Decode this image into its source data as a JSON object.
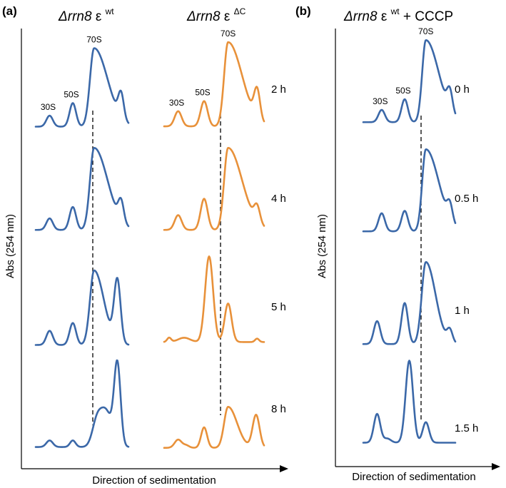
{
  "colors": {
    "wt": "#3b68a8",
    "dc": "#e8913a",
    "axis": "#000000"
  },
  "chart_data": {
    "type": "line",
    "description_units": "relative absorbance (A254) vs relative sedimentation position (0-1, top to bottom of gradient)",
    "panels": [
      {
        "panel": "(a)",
        "xlabel": "Direction of sedimentation",
        "ylabel": "Abs (254 nm)",
        "columns": [
          {
            "title_main": "Δrrn8",
            "title_greek": "ε",
            "title_sup": "wt",
            "color": "wt",
            "profiles": [
              {
                "time": "2 h",
                "base": 0.05,
                "peaks": [
                  {
                    "label": "30S",
                    "x": 0.15,
                    "h": 0.14,
                    "w": 0.035
                  },
                  {
                    "label": "50S",
                    "x": 0.4,
                    "h": 0.3,
                    "w": 0.035
                  },
                  {
                    "label": "70S",
                    "x": 0.63,
                    "h": 1.0,
                    "w": 0.045,
                    "tail": 0.1
                  },
                  {
                    "label": "",
                    "x": 0.92,
                    "h": 0.32,
                    "w": 0.03
                  }
                ]
              },
              {
                "time": "4 h",
                "base": 0.05,
                "peaks": [
                  {
                    "label": "",
                    "x": 0.15,
                    "h": 0.14,
                    "w": 0.035
                  },
                  {
                    "label": "",
                    "x": 0.4,
                    "h": 0.28,
                    "w": 0.035
                  },
                  {
                    "label": "",
                    "x": 0.63,
                    "h": 1.0,
                    "w": 0.045,
                    "tail": 0.1
                  },
                  {
                    "label": "",
                    "x": 0.92,
                    "h": 0.25,
                    "w": 0.03
                  }
                ]
              },
              {
                "time": "5 h",
                "base": 0.05,
                "peaks": [
                  {
                    "label": "",
                    "x": 0.15,
                    "h": 0.18,
                    "w": 0.035
                  },
                  {
                    "label": "",
                    "x": 0.4,
                    "h": 0.28,
                    "w": 0.035
                  },
                  {
                    "label": "",
                    "x": 0.63,
                    "h": 0.95,
                    "w": 0.045,
                    "tail": 0.06
                  },
                  {
                    "label": "",
                    "x": 0.88,
                    "h": 0.8,
                    "w": 0.035
                  }
                ]
              },
              {
                "time": "8 h",
                "base": 0.03,
                "peaks": [
                  {
                    "label": "",
                    "x": 0.15,
                    "h": 0.08,
                    "w": 0.035
                  },
                  {
                    "label": "",
                    "x": 0.4,
                    "h": 0.08,
                    "w": 0.03
                  },
                  {
                    "label": "",
                    "x": 0.66,
                    "h": 0.3,
                    "w": 0.05
                  },
                  {
                    "label": "",
                    "x": 0.76,
                    "h": 0.42,
                    "w": 0.06
                  },
                  {
                    "label": "",
                    "x": 0.88,
                    "h": 1.0,
                    "w": 0.035
                  }
                ]
              }
            ]
          },
          {
            "title_main": "Δrrn8",
            "title_greek": "ε",
            "title_sup": "ΔC",
            "color": "dc",
            "profiles": [
              {
                "time": "2 h",
                "base": 0.05,
                "peaks": [
                  {
                    "label": "30S",
                    "x": 0.14,
                    "h": 0.18,
                    "w": 0.035
                  },
                  {
                    "label": "50S",
                    "x": 0.4,
                    "h": 0.3,
                    "w": 0.035
                  },
                  {
                    "label": "70S",
                    "x": 0.64,
                    "h": 1.0,
                    "w": 0.04,
                    "tail": 0.1
                  },
                  {
                    "label": "",
                    "x": 0.93,
                    "h": 0.35,
                    "w": 0.03
                  }
                ]
              },
              {
                "time": "4 h",
                "base": 0.05,
                "peaks": [
                  {
                    "label": "",
                    "x": 0.14,
                    "h": 0.18,
                    "w": 0.035
                  },
                  {
                    "label": "",
                    "x": 0.4,
                    "h": 0.38,
                    "w": 0.035
                  },
                  {
                    "label": "",
                    "x": 0.64,
                    "h": 1.0,
                    "w": 0.04,
                    "tail": 0.1
                  },
                  {
                    "label": "",
                    "x": 0.93,
                    "h": 0.2,
                    "w": 0.03
                  }
                ]
              },
              {
                "time": "5 h",
                "base": 0.08,
                "peaks": [
                  {
                    "label": "",
                    "x": 0.05,
                    "h": 0.05,
                    "w": 0.02
                  },
                  {
                    "label": "",
                    "x": 0.2,
                    "h": 0.05,
                    "w": 0.06
                  },
                  {
                    "label": "",
                    "x": 0.45,
                    "h": 1.0,
                    "w": 0.04
                  },
                  {
                    "label": "",
                    "x": 0.64,
                    "h": 0.45,
                    "w": 0.035
                  },
                  {
                    "label": "",
                    "x": 0.93,
                    "h": 0.04,
                    "w": 0.02
                  }
                ]
              },
              {
                "time": "8 h",
                "base": 0.02,
                "peaks": [
                  {
                    "label": "",
                    "x": 0.14,
                    "h": 0.1,
                    "w": 0.035
                  },
                  {
                    "label": "",
                    "x": 0.22,
                    "h": 0.03,
                    "w": 0.03
                  },
                  {
                    "label": "",
                    "x": 0.4,
                    "h": 0.25,
                    "w": 0.03
                  },
                  {
                    "label": "",
                    "x": 0.64,
                    "h": 0.5,
                    "w": 0.04,
                    "tail": 0.05
                  },
                  {
                    "label": "",
                    "x": 0.92,
                    "h": 0.4,
                    "w": 0.035
                  }
                ]
              }
            ]
          }
        ]
      },
      {
        "panel": "(b)",
        "xlabel": "Direction of sedimentation",
        "ylabel": "Abs (254 nm)",
        "columns": [
          {
            "title_main": "Δrrn8",
            "title_greek": "ε",
            "title_sup": "wt",
            "title_suffix": " + CCCP",
            "color": "wt",
            "profiles": [
              {
                "time": "0 h",
                "base": 0.05,
                "peaks": [
                  {
                    "label": "30S",
                    "x": 0.2,
                    "h": 0.15,
                    "w": 0.035
                  },
                  {
                    "label": "50S",
                    "x": 0.45,
                    "h": 0.28,
                    "w": 0.035
                  },
                  {
                    "label": "70S",
                    "x": 0.68,
                    "h": 1.0,
                    "w": 0.04,
                    "tail": 0.1
                  },
                  {
                    "label": "",
                    "x": 0.94,
                    "h": 0.25,
                    "w": 0.03
                  }
                ]
              },
              {
                "time": "0.5 h",
                "base": 0.05,
                "peaks": [
                  {
                    "label": "",
                    "x": 0.2,
                    "h": 0.22,
                    "w": 0.035
                  },
                  {
                    "label": "",
                    "x": 0.45,
                    "h": 0.25,
                    "w": 0.035
                  },
                  {
                    "label": "",
                    "x": 0.68,
                    "h": 1.0,
                    "w": 0.04,
                    "tail": 0.1
                  },
                  {
                    "label": "",
                    "x": 0.94,
                    "h": 0.2,
                    "w": 0.03
                  }
                ]
              },
              {
                "time": "1 h",
                "base": 0.05,
                "peaks": [
                  {
                    "label": "",
                    "x": 0.15,
                    "h": 0.28,
                    "w": 0.035
                  },
                  {
                    "label": "",
                    "x": 0.45,
                    "h": 0.5,
                    "w": 0.035
                  },
                  {
                    "label": "",
                    "x": 0.68,
                    "h": 1.0,
                    "w": 0.045,
                    "tail": 0.06
                  },
                  {
                    "label": "",
                    "x": 0.94,
                    "h": 0.15,
                    "w": 0.03
                  }
                ]
              },
              {
                "time": "1.5 h",
                "base": 0.1,
                "peaks": [
                  {
                    "label": "",
                    "x": 0.15,
                    "h": 0.35,
                    "w": 0.035
                  },
                  {
                    "label": "",
                    "x": 0.26,
                    "h": 0.05,
                    "w": 0.04
                  },
                  {
                    "label": "",
                    "x": 0.5,
                    "h": 1.0,
                    "w": 0.04
                  },
                  {
                    "label": "",
                    "x": 0.68,
                    "h": 0.25,
                    "w": 0.035
                  }
                ]
              }
            ]
          }
        ]
      }
    ]
  }
}
